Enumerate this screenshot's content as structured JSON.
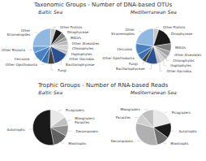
{
  "chart_data": [
    {
      "type": "pie",
      "title": "Taxonomic Groups - Number of DNA-based OTUs",
      "subtitle": "Baltic Sea",
      "categories": [
        "Other Protists",
        "Dinophyceae",
        "MALVs",
        "Other Alveolates",
        "Chlorophytes",
        "Haptophytes",
        "Other Hacrobia",
        "Bacillariophyceae",
        "Fungi",
        "Other Opisthokonta",
        "Cercozoä",
        "Other Rhizaria",
        "Other\nStramenopiles"
      ],
      "values": [
        4,
        5,
        4,
        3,
        3,
        4,
        3,
        11,
        5,
        5,
        8,
        5,
        20
      ],
      "colors": [
        "#c8c8c8",
        "#1a1a1a",
        "#808080",
        "#a0a0a0",
        "#b8b8b8",
        "#d0d0d0",
        "#c0c0c0",
        "#2a5090",
        "#404040",
        "#3a70b0",
        "#4a80c0",
        "#6aa0d8",
        "#90b8e0"
      ]
    },
    {
      "type": "pie",
      "subtitle": "Mediterranean Sea",
      "categories": [
        "Other Protists",
        "Dinophyceae",
        "MALVs",
        "Other Alveolates",
        "Chlorophytes",
        "Haptophytes",
        "Other Hacrobia",
        "Bacillariophyceae",
        "Fungi",
        "Other Opisthokonta",
        "Cercozoä",
        "Other\nStramenopiles"
      ],
      "values": [
        4,
        14,
        6,
        4,
        3,
        3,
        3,
        9,
        3,
        5,
        8,
        18
      ],
      "colors": [
        "#c8c8c8",
        "#1a1a1a",
        "#808080",
        "#a0a0a0",
        "#b8b8b8",
        "#d0d0d0",
        "#c0c0c0",
        "#2a5090",
        "#404040",
        "#3a70b0",
        "#4a80c0",
        "#90b8e0"
      ]
    },
    {
      "type": "pie",
      "title": "Trophic Groups - Number of RNA-based Reads",
      "subtitle": "Baltic Sea",
      "categories": [
        "Picograzers",
        "Mixograzers\nParasites",
        "Decomposers",
        "Mixotrophs",
        "Autotrophs"
      ],
      "values": [
        15,
        8,
        10,
        14,
        53
      ],
      "colors": [
        "#e8e8e8",
        "#c0c0c0",
        "#909090",
        "#606060",
        "#1a1a1a"
      ]
    },
    {
      "type": "pie",
      "subtitle": "Mediterranean Sea",
      "categories": [
        "Picograzers",
        "Autotrophs",
        "Mixotrophs",
        "Decomposers",
        "Parasites",
        "Mixograzers"
      ],
      "values": [
        18,
        12,
        10,
        28,
        8,
        10
      ],
      "colors": [
        "#e8e8e8",
        "#1a1a1a",
        "#707070",
        "#b0b0b0",
        "#d0d0d0",
        "#c0c0c0"
      ]
    }
  ]
}
